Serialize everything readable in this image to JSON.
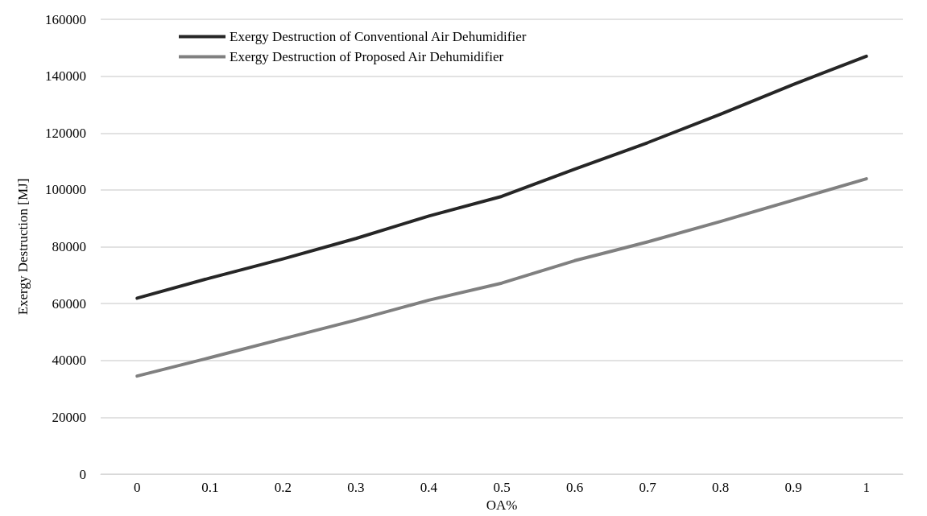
{
  "chart_data": {
    "type": "line",
    "xlabel": "OA%",
    "ylabel": "Exergy Destruction [MJ]",
    "categories": [
      "0",
      "0.1",
      "0.2",
      "0.3",
      "0.4",
      "0.5",
      "0.6",
      "0.7",
      "0.8",
      "0.9",
      "1"
    ],
    "series": [
      {
        "name": "Exergy Destruction of Conventional Air Dehumidifier",
        "color": "#262626",
        "values": [
          61900,
          69000,
          75700,
          82900,
          90800,
          97700,
          107300,
          116600,
          126600,
          137100,
          147000
        ]
      },
      {
        "name": "Exergy Destruction of Proposed Air Dehumidifier",
        "color": "#808080",
        "values": [
          34500,
          41000,
          47600,
          54200,
          61200,
          67200,
          75100,
          81700,
          88900,
          96400,
          103900
        ]
      }
    ],
    "ylim": [
      0,
      160000
    ],
    "yticks": [
      0,
      20000,
      40000,
      60000,
      80000,
      100000,
      120000,
      140000,
      160000
    ],
    "grid": "y",
    "legend": "top left",
    "marker": "none",
    "line_style": "solid"
  }
}
